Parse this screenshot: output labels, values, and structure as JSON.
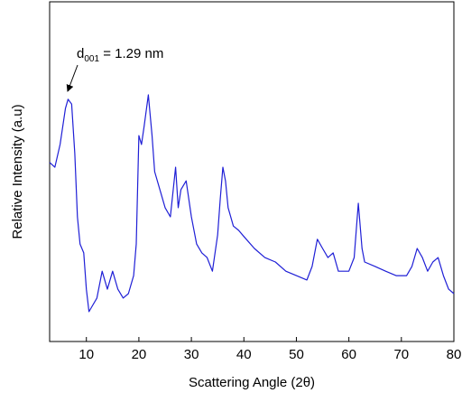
{
  "chart_data": {
    "type": "line",
    "x_label": "Scattering Angle (2θ)",
    "y_label": "Relative Intensity (a.u)",
    "annotation": {
      "text": "d",
      "subscript": "001",
      "rest": " = 1.29 nm"
    },
    "color": "#1f1fd6",
    "x": [
      3,
      4,
      5,
      6,
      6.5,
      7.2,
      7.8,
      8.3,
      8.8,
      9.5,
      10,
      10.5,
      11,
      12,
      13,
      14,
      15,
      16,
      17,
      18,
      19,
      19.5,
      20,
      20.5,
      21,
      21.8,
      22.5,
      23,
      24,
      25,
      26,
      27,
      27.5,
      28,
      29,
      30,
      31,
      32,
      33,
      34,
      35,
      35.5,
      36,
      36.5,
      37,
      38,
      39,
      40,
      42,
      44,
      46,
      48,
      50,
      52,
      53,
      54,
      55,
      56,
      57,
      58,
      60,
      61,
      61.8,
      62.5,
      63,
      65,
      67,
      69,
      71,
      72,
      73,
      74,
      75,
      76,
      77,
      78,
      79,
      80
    ],
    "values": [
      52.7,
      51.3,
      58.0,
      68.6,
      71.3,
      69.9,
      55.3,
      36.7,
      28.7,
      26.1,
      15.4,
      8.8,
      10.1,
      12.8,
      20.7,
      15.4,
      20.7,
      15.4,
      12.8,
      14.1,
      19.4,
      28.7,
      60.6,
      58.0,
      63.3,
      72.6,
      60.6,
      50.0,
      44.7,
      39.4,
      36.7,
      51.3,
      39.4,
      44.7,
      47.3,
      36.7,
      28.7,
      26.1,
      24.7,
      20.7,
      31.4,
      42.0,
      51.3,
      47.3,
      39.4,
      34.0,
      32.7,
      30.9,
      27.4,
      24.7,
      23.4,
      20.7,
      19.4,
      18.1,
      22.1,
      30.1,
      27.4,
      24.7,
      26.1,
      20.7,
      20.7,
      24.7,
      40.7,
      27.4,
      23.4,
      22.1,
      20.7,
      19.4,
      19.4,
      22.1,
      27.4,
      24.7,
      20.7,
      23.4,
      24.7,
      19.4,
      15.4,
      14.1
    ],
    "xlim": [
      3,
      80
    ],
    "xticks": [
      10,
      20,
      30,
      40,
      50,
      60,
      70,
      80
    ],
    "ylim": [
      0,
      100
    ]
  }
}
